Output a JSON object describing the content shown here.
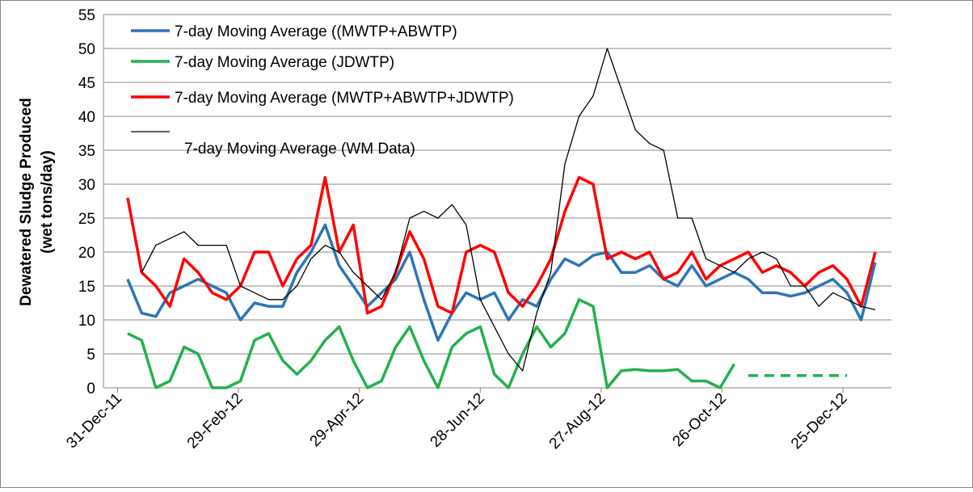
{
  "chart_data": {
    "type": "line",
    "y_label": [
      "Dewatered Sludge Produced",
      "(wet tons/day)"
    ],
    "x": [
      "5-Jan-12",
      "12-Jan-12",
      "19-Jan-12",
      "26-Jan-12",
      "2-Feb-12",
      "9-Feb-12",
      "16-Feb-12",
      "23-Feb-12",
      "1-Mar-12",
      "8-Mar-12",
      "15-Mar-12",
      "22-Mar-12",
      "29-Mar-12",
      "5-Apr-12",
      "12-Apr-12",
      "19-Apr-12",
      "26-Apr-12",
      "3-May-12",
      "10-May-12",
      "17-May-12",
      "24-May-12",
      "31-May-12",
      "7-Jun-12",
      "14-Jun-12",
      "21-Jun-12",
      "28-Jun-12",
      "5-Jul-12",
      "12-Jul-12",
      "19-Jul-12",
      "26-Jul-12",
      "2-Aug-12",
      "9-Aug-12",
      "16-Aug-12",
      "23-Aug-12",
      "30-Aug-12",
      "6-Sep-12",
      "13-Sep-12",
      "20-Sep-12",
      "27-Sep-12",
      "4-Oct-12",
      "11-Oct-12",
      "18-Oct-12",
      "25-Oct-12",
      "1-Nov-12",
      "8-Nov-12",
      "15-Nov-12",
      "22-Nov-12",
      "29-Nov-12",
      "6-Dec-12",
      "13-Dec-12",
      "20-Dec-12",
      "27-Dec-12",
      "3-Jan-13",
      "10-Jan-13"
    ],
    "series": [
      {
        "name": "7-day Moving Average ((MWTP+ABWTP)",
        "color": "#2e75b6",
        "values": [
          16,
          11,
          10.5,
          14,
          15,
          16,
          15,
          14,
          10,
          12.5,
          12,
          12,
          17,
          20,
          24,
          18,
          15,
          12,
          14,
          16,
          20,
          13,
          7,
          11,
          14,
          13,
          14,
          10,
          13,
          12,
          16,
          19,
          18,
          19.5,
          20,
          17,
          17,
          18,
          16,
          15,
          18,
          15,
          16,
          17,
          16,
          14,
          14,
          13.5,
          14,
          15,
          16,
          14,
          10,
          18.5
        ]
      },
      {
        "name": "7-day Moving Average (JDWTP)",
        "color": "#22b14c",
        "values": [
          8,
          7,
          0,
          1,
          6,
          5,
          0,
          0,
          1,
          7,
          8,
          4,
          2,
          4,
          7,
          9,
          4,
          0,
          1,
          6,
          9,
          4,
          0,
          6,
          8,
          9,
          2,
          0,
          5,
          9,
          6,
          8,
          13,
          12,
          0,
          2.5,
          2.7,
          2.5,
          2.5,
          2.7,
          1,
          1,
          0,
          3.5,
          null,
          null,
          null,
          null,
          null,
          null,
          null,
          null,
          null,
          null
        ]
      },
      {
        "name": "7-day Moving Average (MWTP+ABWTP+JDWTP)",
        "color": "#ff0000",
        "values": [
          28,
          17,
          15,
          12,
          19,
          17,
          14,
          13,
          15,
          20,
          20,
          15,
          19,
          21,
          31,
          20,
          24,
          11,
          12,
          17,
          23,
          19,
          12,
          11,
          20,
          21,
          20,
          14,
          12,
          15,
          19,
          26,
          31,
          30,
          19,
          20,
          19,
          20,
          16,
          17,
          20,
          16,
          18,
          19,
          20,
          17,
          18,
          17,
          15,
          17,
          18,
          16,
          12,
          20
        ]
      },
      {
        "name": "7-day Moving Average (WM Data)",
        "color": "#000000",
        "values": [
          null,
          17,
          21,
          22,
          23,
          21,
          21,
          21,
          15,
          14,
          13,
          13,
          15,
          19,
          21,
          20,
          17,
          15,
          13,
          17,
          25,
          26,
          25,
          27,
          24,
          13,
          9,
          5,
          2.5,
          11,
          17,
          33,
          40,
          43,
          50,
          44,
          38,
          36,
          35,
          25,
          25,
          19,
          18,
          17,
          19,
          20,
          19,
          15,
          15,
          12,
          14,
          13,
          12,
          11.5
        ]
      },
      {
        "color": "#22b14c",
        "style": "dashed",
        "values": [
          null,
          null,
          null,
          null,
          null,
          null,
          null,
          null,
          null,
          null,
          null,
          null,
          null,
          null,
          null,
          null,
          null,
          null,
          null,
          null,
          null,
          null,
          null,
          null,
          null,
          null,
          null,
          null,
          null,
          null,
          null,
          null,
          null,
          null,
          null,
          null,
          null,
          null,
          null,
          null,
          null,
          null,
          null,
          null,
          1.8,
          1.8,
          1.8,
          1.8,
          1.8,
          1.8,
          1.8,
          1.8,
          null,
          null
        ]
      }
    ],
    "xlim": [
      "24-Dec-11",
      "18-Jan-13"
    ],
    "xticks": [
      "31-Dec-11",
      "29-Feb-12",
      "29-Apr-12",
      "28-Jun-12",
      "27-Aug-12",
      "26-Oct-12",
      "25-Dec-12"
    ],
    "ylim": [
      0,
      55
    ],
    "yticks": [
      0,
      5,
      10,
      15,
      20,
      25,
      30,
      35,
      40,
      45,
      50,
      55
    ],
    "grid": true
  }
}
